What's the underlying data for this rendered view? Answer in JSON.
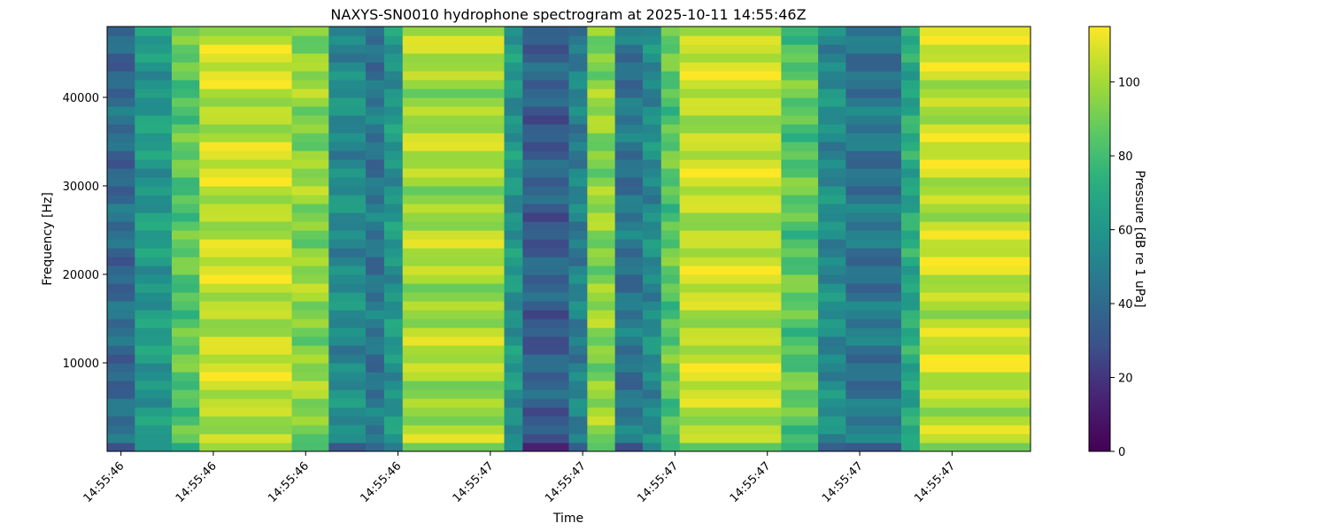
{
  "chart_data": {
    "type": "heatmap",
    "title": "NAXYS-SN0010 hydrophone spectrogram at 2025-10-11 14:55:46Z",
    "xlabel": "Time",
    "ylabel": "Frequency [Hz]",
    "colorbar_label": "Pressure [dB re 1 uPa]",
    "colormap": "viridis",
    "color_range": [
      0,
      115
    ],
    "colorbar_ticks": [
      0,
      20,
      40,
      60,
      80,
      100
    ],
    "y_range": [
      0,
      48000
    ],
    "y_ticks": [
      10000,
      20000,
      30000,
      40000
    ],
    "x_range": [
      0,
      1.0
    ],
    "x_ticks": [
      {
        "t": 0.015,
        "label": "14:55:46"
      },
      {
        "t": 0.115,
        "label": "14:55:46"
      },
      {
        "t": 0.215,
        "label": "14:55:46"
      },
      {
        "t": 0.315,
        "label": "14:55:46"
      },
      {
        "t": 0.415,
        "label": "14:55:47"
      },
      {
        "t": 0.515,
        "label": "14:55:47"
      },
      {
        "t": 0.615,
        "label": "14:55:47"
      },
      {
        "t": 0.715,
        "label": "14:55:47"
      },
      {
        "t": 0.815,
        "label": "14:55:47"
      },
      {
        "t": 0.915,
        "label": "14:55:47"
      }
    ],
    "time_segments": [
      {
        "t_start": 0.0,
        "t_end": 0.03,
        "level": 40
      },
      {
        "t_start": 0.03,
        "t_end": 0.07,
        "level": 62
      },
      {
        "t_start": 0.07,
        "t_end": 0.1,
        "level": 85
      },
      {
        "t_start": 0.1,
        "t_end": 0.2,
        "level": 105
      },
      {
        "t_start": 0.2,
        "t_end": 0.24,
        "level": 95
      },
      {
        "t_start": 0.24,
        "t_end": 0.28,
        "level": 55
      },
      {
        "t_start": 0.28,
        "t_end": 0.3,
        "level": 45
      },
      {
        "t_start": 0.3,
        "t_end": 0.32,
        "level": 60
      },
      {
        "t_start": 0.32,
        "t_end": 0.43,
        "level": 100
      },
      {
        "t_start": 0.43,
        "t_end": 0.45,
        "level": 60
      },
      {
        "t_start": 0.45,
        "t_end": 0.5,
        "level": 35
      },
      {
        "t_start": 0.5,
        "t_end": 0.52,
        "level": 50
      },
      {
        "t_start": 0.52,
        "t_end": 0.55,
        "level": 95
      },
      {
        "t_start": 0.55,
        "t_end": 0.58,
        "level": 45
      },
      {
        "t_start": 0.58,
        "t_end": 0.6,
        "level": 55
      },
      {
        "t_start": 0.6,
        "t_end": 0.62,
        "level": 85
      },
      {
        "t_start": 0.62,
        "t_end": 0.73,
        "level": 105
      },
      {
        "t_start": 0.73,
        "t_end": 0.77,
        "level": 85
      },
      {
        "t_start": 0.77,
        "t_end": 0.8,
        "level": 55
      },
      {
        "t_start": 0.8,
        "t_end": 0.86,
        "level": 45
      },
      {
        "t_start": 0.86,
        "t_end": 0.88,
        "level": 70
      },
      {
        "t_start": 0.88,
        "t_end": 1.0,
        "level": 105
      }
    ]
  }
}
